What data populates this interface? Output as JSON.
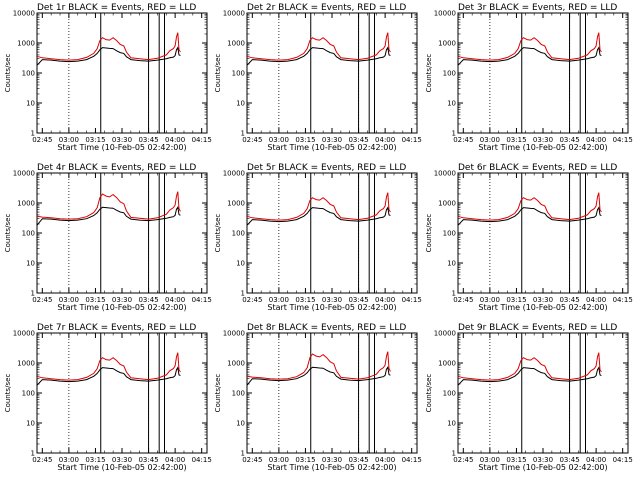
{
  "figure": {
    "xlabel": "Start Time (10-Feb-05 02:42:00)",
    "ylabel": "Counts/sec",
    "series_colors": {
      "events": "#000000",
      "lld": "#e00000"
    }
  },
  "chart_data": {
    "type": "line",
    "y_scale": "log",
    "ylim": [
      1,
      10000
    ],
    "yticks": [
      1,
      10,
      100,
      1000,
      10000
    ],
    "ytick_labels": [
      "1",
      "10",
      "100",
      "1000",
      "10000"
    ],
    "xlim_min": [
      -3,
      93
    ],
    "xticks_min": [
      0,
      15,
      30,
      45,
      60,
      75,
      90
    ],
    "xtick_labels": [
      "02:45",
      "03:00",
      "03:15",
      "03:30",
      "03:45",
      "04:00",
      "04:15"
    ],
    "dotted_lines_min": [
      15,
      60
    ],
    "solid_lines_min": [
      33,
      60,
      66,
      69
    ],
    "x": [
      -3,
      0,
      5,
      10,
      15,
      20,
      25,
      29,
      31,
      32.5,
      34,
      36,
      38,
      40,
      42,
      44,
      46,
      47.5,
      50,
      55,
      60,
      65,
      70,
      72,
      74,
      75,
      75.8,
      76.5,
      77.2,
      78
    ],
    "panels": [
      {
        "title": "Det 1r BLACK = Events, RED = LLD",
        "events": [
          180,
          280,
          270,
          250,
          240,
          250,
          280,
          360,
          450,
          600,
          700,
          680,
          660,
          650,
          550,
          480,
          450,
          350,
          280,
          260,
          250,
          270,
          300,
          320,
          340,
          380,
          600,
          700,
          400,
          380
        ],
        "lld": [
          360,
          320,
          300,
          280,
          270,
          280,
          330,
          450,
          650,
          1200,
          1500,
          1300,
          1250,
          1500,
          1200,
          900,
          800,
          500,
          320,
          300,
          280,
          310,
          400,
          550,
          650,
          800,
          1600,
          2200,
          600,
          500
        ]
      },
      {
        "title": "Det 2r BLACK = Events, RED = LLD",
        "events": [
          180,
          280,
          270,
          250,
          240,
          250,
          280,
          360,
          450,
          600,
          700,
          680,
          660,
          650,
          550,
          480,
          450,
          350,
          280,
          260,
          250,
          270,
          300,
          320,
          340,
          380,
          600,
          700,
          400,
          380
        ],
        "lld": [
          360,
          320,
          300,
          280,
          270,
          280,
          330,
          450,
          650,
          1200,
          1500,
          1300,
          1250,
          1500,
          1200,
          900,
          800,
          500,
          320,
          300,
          280,
          310,
          400,
          550,
          650,
          800,
          1600,
          2200,
          600,
          500
        ]
      },
      {
        "title": "Det 3r BLACK = Events, RED = LLD",
        "events": [
          180,
          280,
          270,
          250,
          240,
          250,
          280,
          360,
          450,
          600,
          700,
          680,
          660,
          650,
          550,
          480,
          450,
          350,
          280,
          260,
          250,
          270,
          300,
          320,
          340,
          380,
          600,
          700,
          400,
          380
        ],
        "lld": [
          360,
          320,
          300,
          280,
          270,
          280,
          330,
          450,
          650,
          1200,
          1500,
          1300,
          1250,
          1500,
          1200,
          900,
          800,
          500,
          320,
          300,
          280,
          310,
          400,
          550,
          650,
          800,
          1600,
          2200,
          600,
          500
        ]
      },
      {
        "title": "Det 4r BLACK = Events, RED = LLD",
        "events": [
          180,
          300,
          290,
          270,
          260,
          270,
          300,
          380,
          470,
          620,
          720,
          700,
          680,
          670,
          570,
          500,
          470,
          360,
          290,
          270,
          260,
          280,
          310,
          330,
          350,
          390,
          620,
          720,
          410,
          390
        ],
        "lld": [
          360,
          340,
          320,
          300,
          290,
          300,
          350,
          480,
          700,
          1500,
          2000,
          1700,
          1600,
          1900,
          1500,
          1100,
          950,
          550,
          330,
          310,
          290,
          320,
          420,
          580,
          700,
          850,
          1700,
          2400,
          650,
          520
        ]
      },
      {
        "title": "Det 5r BLACK = Events, RED = LLD",
        "events": [
          180,
          280,
          270,
          250,
          240,
          250,
          280,
          360,
          450,
          600,
          700,
          680,
          660,
          650,
          550,
          480,
          450,
          350,
          280,
          260,
          250,
          270,
          300,
          320,
          340,
          380,
          600,
          700,
          400,
          380
        ],
        "lld": [
          360,
          320,
          300,
          280,
          270,
          280,
          330,
          450,
          650,
          1200,
          1500,
          1300,
          1250,
          1500,
          1200,
          900,
          800,
          500,
          320,
          300,
          280,
          310,
          400,
          550,
          650,
          800,
          1600,
          2200,
          600,
          500
        ]
      },
      {
        "title": "Det 6r BLACK = Events, RED = LLD",
        "events": [
          180,
          280,
          270,
          250,
          240,
          250,
          280,
          360,
          450,
          600,
          700,
          680,
          660,
          650,
          550,
          480,
          450,
          350,
          280,
          260,
          250,
          270,
          300,
          320,
          340,
          380,
          600,
          700,
          400,
          380
        ],
        "lld": [
          360,
          320,
          300,
          280,
          270,
          280,
          330,
          450,
          650,
          1200,
          1500,
          1300,
          1250,
          1500,
          1200,
          900,
          800,
          500,
          320,
          300,
          280,
          310,
          400,
          550,
          650,
          800,
          1600,
          2200,
          600,
          500
        ]
      },
      {
        "title": "Det 7r BLACK = Events, RED = LLD",
        "events": [
          180,
          280,
          270,
          250,
          240,
          250,
          280,
          360,
          450,
          600,
          700,
          680,
          660,
          650,
          550,
          480,
          450,
          350,
          280,
          260,
          250,
          270,
          300,
          320,
          340,
          380,
          600,
          700,
          400,
          380
        ],
        "lld": [
          360,
          320,
          300,
          280,
          270,
          280,
          330,
          450,
          650,
          1200,
          1500,
          1300,
          1250,
          1500,
          1200,
          900,
          800,
          500,
          320,
          300,
          280,
          310,
          400,
          550,
          650,
          800,
          1600,
          2200,
          600,
          500
        ]
      },
      {
        "title": "Det 8r BLACK = Events, RED = LLD",
        "events": [
          180,
          300,
          290,
          270,
          260,
          270,
          300,
          380,
          470,
          620,
          720,
          700,
          680,
          670,
          570,
          500,
          470,
          360,
          290,
          270,
          260,
          280,
          310,
          330,
          350,
          390,
          620,
          720,
          410,
          390
        ],
        "lld": [
          360,
          340,
          320,
          300,
          290,
          300,
          350,
          480,
          700,
          1500,
          2000,
          1700,
          1600,
          1900,
          1500,
          1100,
          950,
          550,
          330,
          310,
          290,
          320,
          420,
          580,
          700,
          850,
          1700,
          2400,
          650,
          520
        ]
      },
      {
        "title": "Det 9r BLACK = Events, RED = LLD",
        "events": [
          180,
          280,
          270,
          250,
          240,
          250,
          280,
          360,
          450,
          600,
          700,
          680,
          660,
          650,
          550,
          480,
          450,
          350,
          280,
          260,
          250,
          270,
          300,
          320,
          340,
          380,
          600,
          700,
          400,
          380
        ],
        "lld": [
          360,
          320,
          300,
          280,
          270,
          280,
          330,
          450,
          650,
          1200,
          1500,
          1300,
          1250,
          1500,
          1200,
          900,
          800,
          500,
          320,
          300,
          280,
          310,
          400,
          550,
          650,
          800,
          1600,
          2200,
          600,
          500
        ]
      }
    ]
  }
}
